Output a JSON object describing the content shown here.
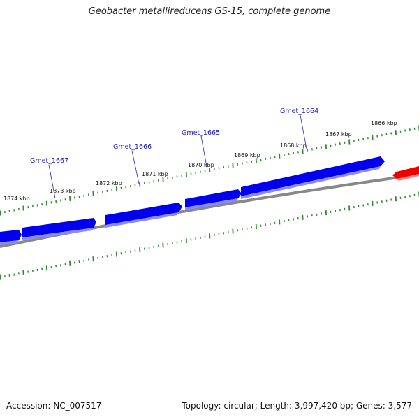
{
  "title": "Geobacter metallireducens GS-15, complete genome",
  "footer": {
    "accession": "Accession: NC_007517",
    "stats": "Topology: circular; Length: 3,997,420 bp; Genes: 3,577"
  },
  "colors": {
    "background": "#ffffff",
    "gene_forward": "#0000ee",
    "gene_reverse": "#ee0000",
    "backbone": "#888888",
    "tick": "#2e8b2e",
    "gene_label": "#1a1acc"
  },
  "scale_labels": [
    "1874 kbp",
    "1873 kbp",
    "1872 kbp",
    "1871 kbp",
    "1870 kbp",
    "1869 kbp",
    "1868 kbp",
    "1867 kbp",
    "1866 kbp"
  ],
  "gene_labels": [
    "Gmet_1667",
    "Gmet_1666",
    "Gmet_1665",
    "Gmet_1664"
  ]
}
